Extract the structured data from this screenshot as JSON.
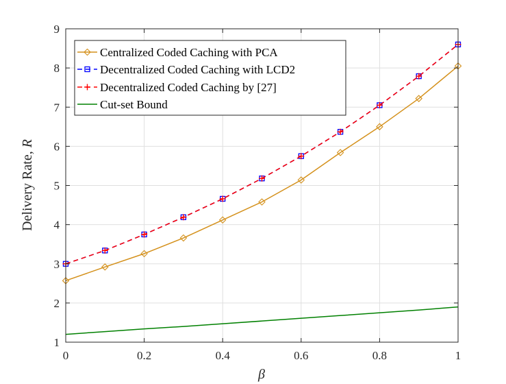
{
  "chart_data": {
    "type": "line",
    "title": "",
    "xlabel": "β",
    "ylabel_text": "Delivery Rate, ",
    "ylabel_symbol": "R",
    "xlim": [
      0,
      1
    ],
    "ylim": [
      1,
      9
    ],
    "xticks": [
      0,
      0.2,
      0.4,
      0.6,
      0.8,
      1
    ],
    "xtick_labels": [
      "0",
      "0.2",
      "0.4",
      "0.6",
      "0.8",
      "1"
    ],
    "yticks": [
      1,
      2,
      3,
      4,
      5,
      6,
      7,
      8,
      9
    ],
    "ytick_labels": [
      "1",
      "2",
      "3",
      "4",
      "5",
      "6",
      "7",
      "8",
      "9"
    ],
    "grid": true,
    "legend_position": "top-left",
    "x": [
      0,
      0.1,
      0.2,
      0.3,
      0.4,
      0.5,
      0.6,
      0.7,
      0.8,
      0.9,
      1.0
    ],
    "series": [
      {
        "name": "Centralized Coded Caching with PCA",
        "color": "#D4901A",
        "line_style": "solid",
        "marker": "diamond",
        "values": [
          2.57,
          2.92,
          3.26,
          3.66,
          4.12,
          4.58,
          5.14,
          5.84,
          6.5,
          7.22,
          8.05
        ]
      },
      {
        "name": "Decentralized Coded  Caching with LCD2",
        "color": "#0000FF",
        "line_style": "dashed",
        "marker": "square",
        "values": [
          3.0,
          3.34,
          3.75,
          4.19,
          4.66,
          5.18,
          5.75,
          6.37,
          7.05,
          7.79,
          8.6
        ]
      },
      {
        "name": "Decentralized Coded Caching by [27]",
        "color": "#FF0000",
        "line_style": "dashed",
        "marker": "plus",
        "values": [
          3.0,
          3.34,
          3.75,
          4.19,
          4.66,
          5.18,
          5.75,
          6.37,
          7.05,
          7.79,
          8.6
        ]
      },
      {
        "name": "Cut-set Bound",
        "color": "#008000",
        "line_style": "solid",
        "marker": "none",
        "values": [
          1.2,
          1.27,
          1.34,
          1.4,
          1.47,
          1.54,
          1.61,
          1.68,
          1.75,
          1.82,
          1.9
        ]
      }
    ]
  }
}
